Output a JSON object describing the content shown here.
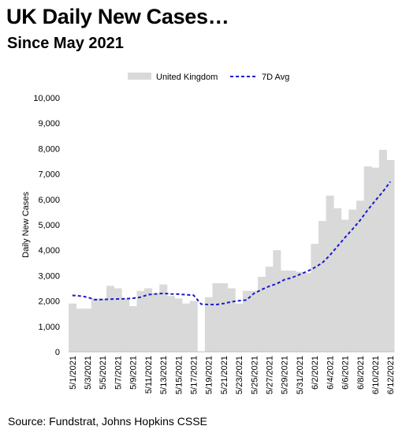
{
  "title": "UK Daily New Cases…",
  "subtitle": "Since May 2021",
  "source": "Source: Fundstrat, Johns Hopkins CSSE",
  "chart_data": {
    "type": "bar",
    "ylabel": "Daily New Cases",
    "ylim": [
      0,
      10000
    ],
    "yticks": [
      0,
      1000,
      2000,
      3000,
      4000,
      5000,
      6000,
      7000,
      8000,
      9000,
      10000
    ],
    "ytick_labels": [
      "0",
      "1,000",
      "2,000",
      "3,000",
      "4,000",
      "5,000",
      "6,000",
      "7,000",
      "8,000",
      "9,000",
      "10,000"
    ],
    "legend_position": "top-center",
    "categories": [
      "5/1/2021",
      "5/2/2021",
      "5/3/2021",
      "5/4/2021",
      "5/5/2021",
      "5/6/2021",
      "5/7/2021",
      "5/8/2021",
      "5/9/2021",
      "5/10/2021",
      "5/11/2021",
      "5/12/2021",
      "5/13/2021",
      "5/14/2021",
      "5/15/2021",
      "5/16/2021",
      "5/17/2021",
      "5/18/2021",
      "5/19/2021",
      "5/20/2021",
      "5/21/2021",
      "5/22/2021",
      "5/23/2021",
      "5/24/2021",
      "5/25/2021",
      "5/26/2021",
      "5/27/2021",
      "5/28/2021",
      "5/29/2021",
      "5/30/2021",
      "5/31/2021",
      "6/1/2021",
      "6/2/2021",
      "6/3/2021",
      "6/4/2021",
      "6/5/2021",
      "6/6/2021",
      "6/7/2021",
      "6/8/2021",
      "6/9/2021",
      "6/10/2021",
      "6/11/2021",
      "6/12/2021"
    ],
    "xtick_labels": [
      "5/1/2021",
      "5/3/2021",
      "5/5/2021",
      "5/7/2021",
      "5/9/2021",
      "5/11/2021",
      "5/13/2021",
      "5/15/2021",
      "5/17/2021",
      "5/19/2021",
      "5/21/2021",
      "5/23/2021",
      "5/25/2021",
      "5/27/2021",
      "5/29/2021",
      "5/31/2021",
      "6/2/2021",
      "6/4/2021",
      "6/6/2021",
      "6/8/2021",
      "6/10/2021",
      "6/12/2021"
    ],
    "series": [
      {
        "name": "United Kingdom",
        "kind": "bar",
        "color": "#d9d9d9",
        "values": [
          1900,
          1700,
          1700,
          2100,
          2100,
          2600,
          2500,
          2100,
          1800,
          2400,
          2500,
          2300,
          2650,
          2200,
          2100,
          1900,
          2000,
          0,
          2150,
          2700,
          2700,
          2500,
          1900,
          2400,
          2400,
          2950,
          3350,
          4000,
          3200,
          3200,
          3150,
          3100,
          4250,
          5150,
          6150,
          5650,
          5200,
          5600,
          5950,
          7300,
          7250,
          7950,
          7550
        ]
      },
      {
        "name": "7D Avg",
        "kind": "line",
        "color": "#1a1acc",
        "values": [
          2220,
          2200,
          2150,
          2050,
          2060,
          2070,
          2080,
          2090,
          2110,
          2150,
          2250,
          2280,
          2300,
          2280,
          2270,
          2250,
          2230,
          1880,
          1860,
          1860,
          1900,
          1970,
          2010,
          2040,
          2300,
          2450,
          2580,
          2680,
          2840,
          2920,
          3040,
          3160,
          3320,
          3500,
          3800,
          4150,
          4500,
          4830,
          5180,
          5580,
          5950,
          6300,
          6700
        ]
      }
    ]
  }
}
